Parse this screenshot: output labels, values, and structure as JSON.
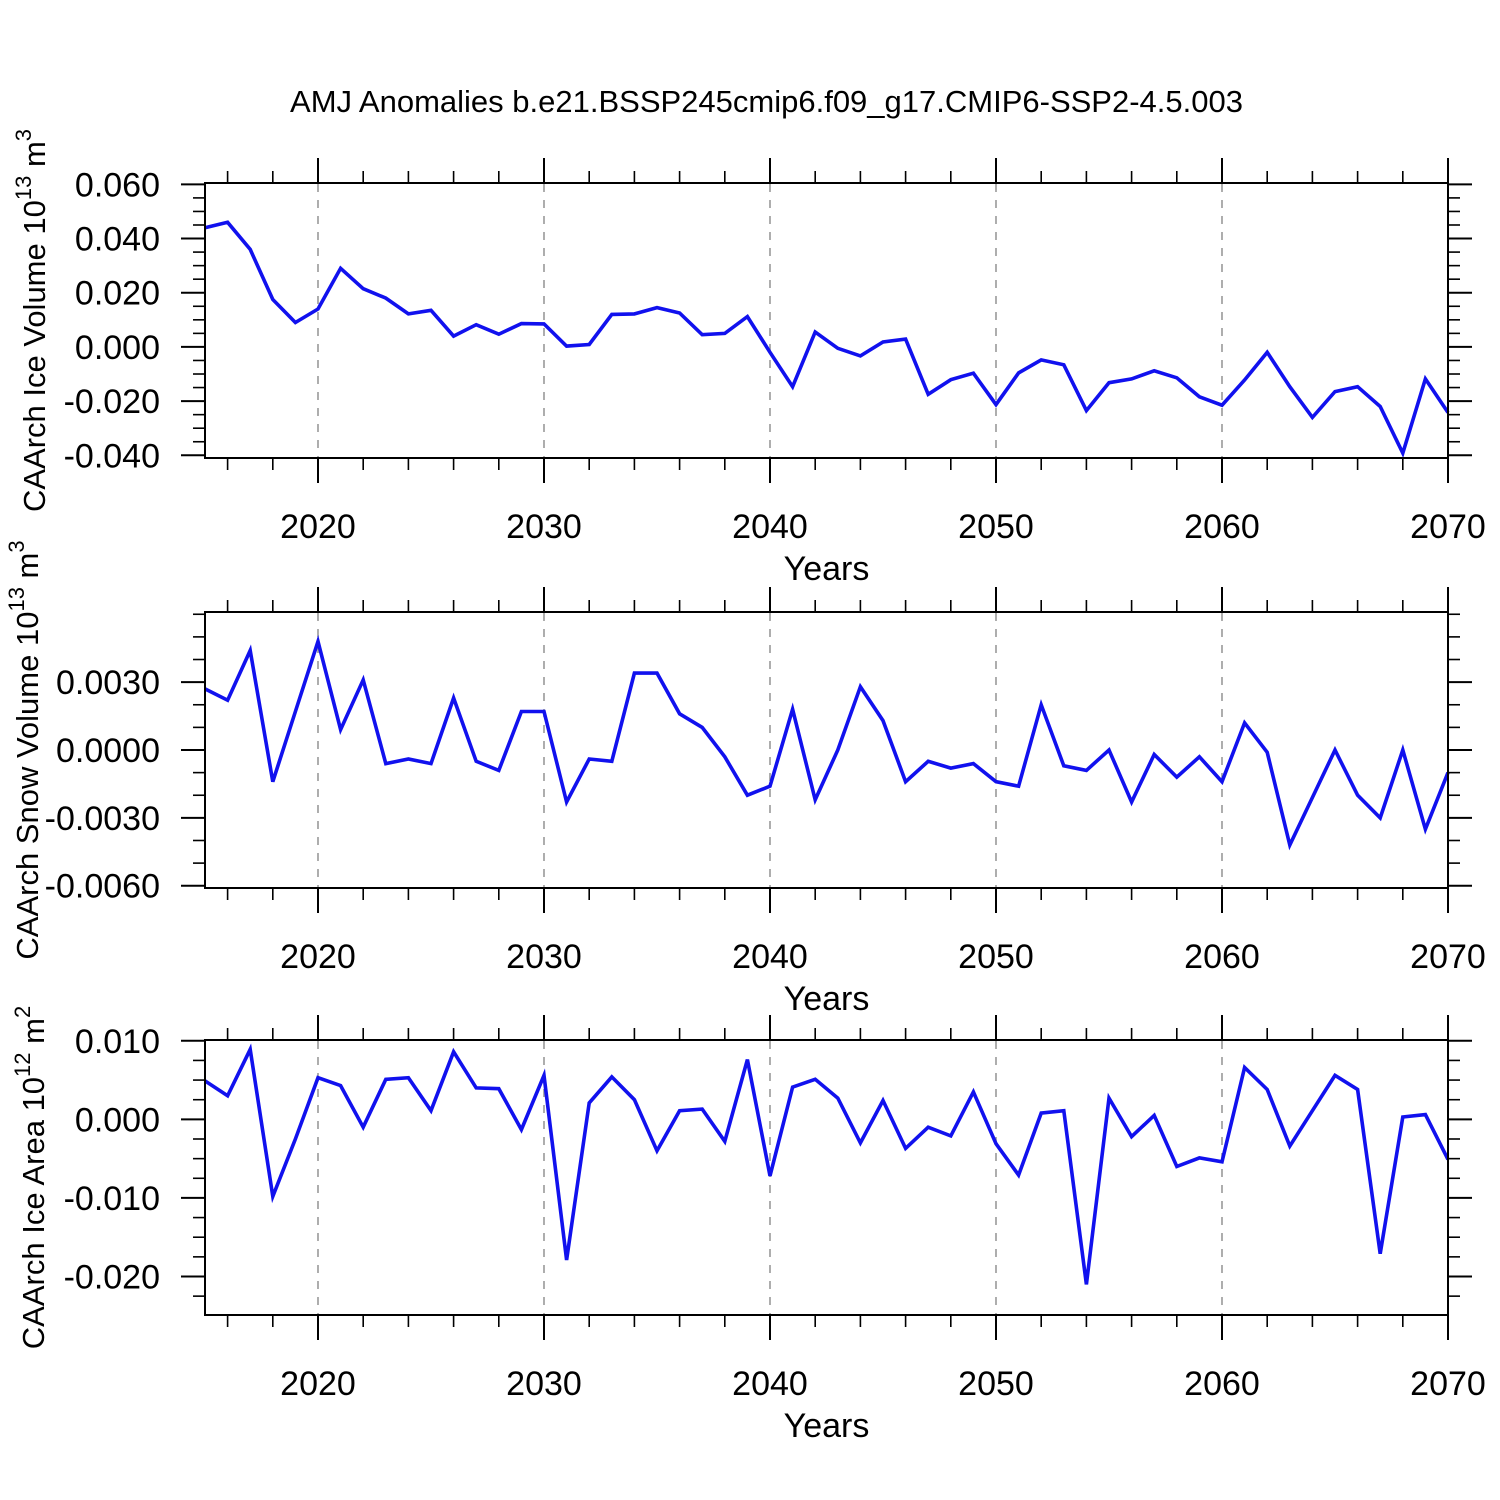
{
  "title": "AMJ Anomalies b.e21.BSSP245cmip6.f09_g17.CMIP6-SSP2-4.5.003",
  "xlabel": "Years",
  "colors": {
    "line": "#1111ee",
    "frame": "#000000",
    "grid": "#999999",
    "text": "#000000",
    "background": "#ffffff"
  },
  "x_axis": {
    "range": [
      2015,
      2070
    ],
    "major_ticks": [
      2020,
      2030,
      2040,
      2050,
      2060,
      2070
    ],
    "major_tick_labels": [
      "2020",
      "2030",
      "2040",
      "2050",
      "2060",
      "2070"
    ],
    "minor_step_years": 2,
    "grid_decades": [
      2020,
      2030,
      2040,
      2050,
      2060
    ]
  },
  "years": [
    2015,
    2016,
    2017,
    2018,
    2019,
    2020,
    2021,
    2022,
    2023,
    2024,
    2025,
    2026,
    2027,
    2028,
    2029,
    2030,
    2031,
    2032,
    2033,
    2034,
    2035,
    2036,
    2037,
    2038,
    2039,
    2040,
    2041,
    2042,
    2043,
    2044,
    2045,
    2046,
    2047,
    2048,
    2049,
    2050,
    2051,
    2052,
    2053,
    2054,
    2055,
    2056,
    2057,
    2058,
    2059,
    2060,
    2061,
    2062,
    2063,
    2064,
    2065,
    2066,
    2067,
    2068,
    2069,
    2070
  ],
  "chart_data": [
    {
      "id": "ice-volume",
      "type": "line",
      "ylabel": "CAArch Ice Volume 10^13 m^3",
      "ylabel_parts": [
        {
          "t": "CAArch Ice Volume 10"
        },
        {
          "t": "13",
          "sup": true
        },
        {
          "t": " m"
        },
        {
          "t": "3",
          "sup": true
        }
      ],
      "xlabel": "Years",
      "ylim": [
        -0.041,
        0.0605
      ],
      "yticks": [
        0.06,
        0.04,
        0.02,
        0.0,
        -0.02,
        -0.04
      ],
      "ytick_labels": [
        "0.060",
        "0.040",
        "0.020",
        "0.000",
        "-0.020",
        "-0.040"
      ],
      "y_minor_step": 0.005,
      "grid": "x-dashed-decades",
      "legend": "none",
      "values": [
        0.044,
        0.046,
        0.036,
        0.0175,
        0.009,
        0.014,
        0.029,
        0.0215,
        0.018,
        0.0122,
        0.0135,
        0.004,
        0.0082,
        0.0047,
        0.0086,
        0.0085,
        0.0003,
        0.0009,
        0.012,
        0.0122,
        0.0145,
        0.0125,
        0.0045,
        0.005,
        0.0112,
        -0.002,
        -0.0147,
        0.0055,
        -0.0005,
        -0.0033,
        0.0018,
        0.0029,
        -0.0175,
        -0.0121,
        -0.0097,
        -0.0213,
        -0.0096,
        -0.0048,
        -0.0066,
        -0.0235,
        -0.0132,
        -0.0118,
        -0.0088,
        -0.0114,
        -0.0184,
        -0.0215,
        -0.0122,
        -0.002,
        -0.0147,
        -0.026,
        -0.0165,
        -0.0147,
        -0.022,
        -0.0392,
        -0.0118,
        -0.0242
      ]
    },
    {
      "id": "snow-volume",
      "type": "line",
      "ylabel": "CAArch Snow Volume 10^13 m^3",
      "ylabel_parts": [
        {
          "t": "CAArch Snow Volume 10"
        },
        {
          "t": "13",
          "sup": true
        },
        {
          "t": " m"
        },
        {
          "t": "3",
          "sup": true
        }
      ],
      "xlabel": "Years",
      "ylim": [
        -0.0061,
        0.0061
      ],
      "yticks": [
        0.003,
        0.0,
        -0.003,
        -0.006
      ],
      "ytick_labels": [
        "0.0030",
        "0.0000",
        "-0.0030",
        "-0.0060"
      ],
      "y_minor_step": 0.001,
      "grid": "x-dashed-decades",
      "legend": "none",
      "values": [
        0.0027,
        0.0022,
        0.0044,
        -0.0014,
        0.0017,
        0.0048,
        0.0009,
        0.0031,
        -0.0006,
        -0.0004,
        -0.0006,
        0.0023,
        -0.0005,
        -0.0009,
        0.0017,
        0.0017,
        -0.0023,
        -0.0004,
        -0.0005,
        0.0034,
        0.0034,
        0.0016,
        0.001,
        -0.0003,
        -0.002,
        -0.0016,
        0.0018,
        -0.0022,
        0.0,
        0.0028,
        0.0013,
        -0.0014,
        -0.0005,
        -0.0008,
        -0.0006,
        -0.0014,
        -0.0016,
        0.002,
        -0.0007,
        -0.0009,
        0.0,
        -0.0023,
        -0.0002,
        -0.0012,
        -0.0003,
        -0.0014,
        0.0012,
        -0.0001,
        -0.0042,
        -0.0021,
        0.0,
        -0.002,
        -0.003,
        0.0,
        -0.0035,
        -0.001
      ]
    },
    {
      "id": "ice-area",
      "type": "line",
      "ylabel": "CAArch Ice Area 10^12 m^2",
      "ylabel_parts": [
        {
          "t": "CAArch Ice Area 10"
        },
        {
          "t": "12",
          "sup": true
        },
        {
          "t": " m"
        },
        {
          "t": "2",
          "sup": true
        }
      ],
      "xlabel": "Years",
      "ylim": [
        -0.0249,
        0.0101
      ],
      "yticks": [
        0.01,
        0.0,
        -0.01,
        -0.02
      ],
      "ytick_labels": [
        "0.010",
        "0.000",
        "-0.010",
        "-0.020"
      ],
      "y_minor_step": 0.0025,
      "grid": "x-dashed-decades",
      "legend": "none",
      "values": [
        0.0049,
        0.003,
        0.0089,
        -0.0098,
        -0.0025,
        0.0053,
        0.0043,
        -0.001,
        0.0051,
        0.0053,
        0.0011,
        0.0086,
        0.004,
        0.0039,
        -0.0013,
        0.0056,
        -0.0179,
        0.0021,
        0.0054,
        0.0025,
        -0.004,
        0.0011,
        0.0013,
        -0.0028,
        0.0076,
        -0.0072,
        0.0041,
        0.0051,
        0.0027,
        -0.003,
        0.0024,
        -0.0037,
        -0.001,
        -0.0021,
        0.0035,
        -0.0031,
        -0.0071,
        0.0008,
        0.0011,
        -0.021,
        0.0027,
        -0.0022,
        0.0005,
        -0.006,
        -0.0049,
        -0.0054,
        0.0066,
        0.0038,
        -0.0034,
        0.0011,
        0.0056,
        0.0038,
        -0.0171,
        0.0003,
        0.0006,
        -0.0051
      ]
    }
  ]
}
